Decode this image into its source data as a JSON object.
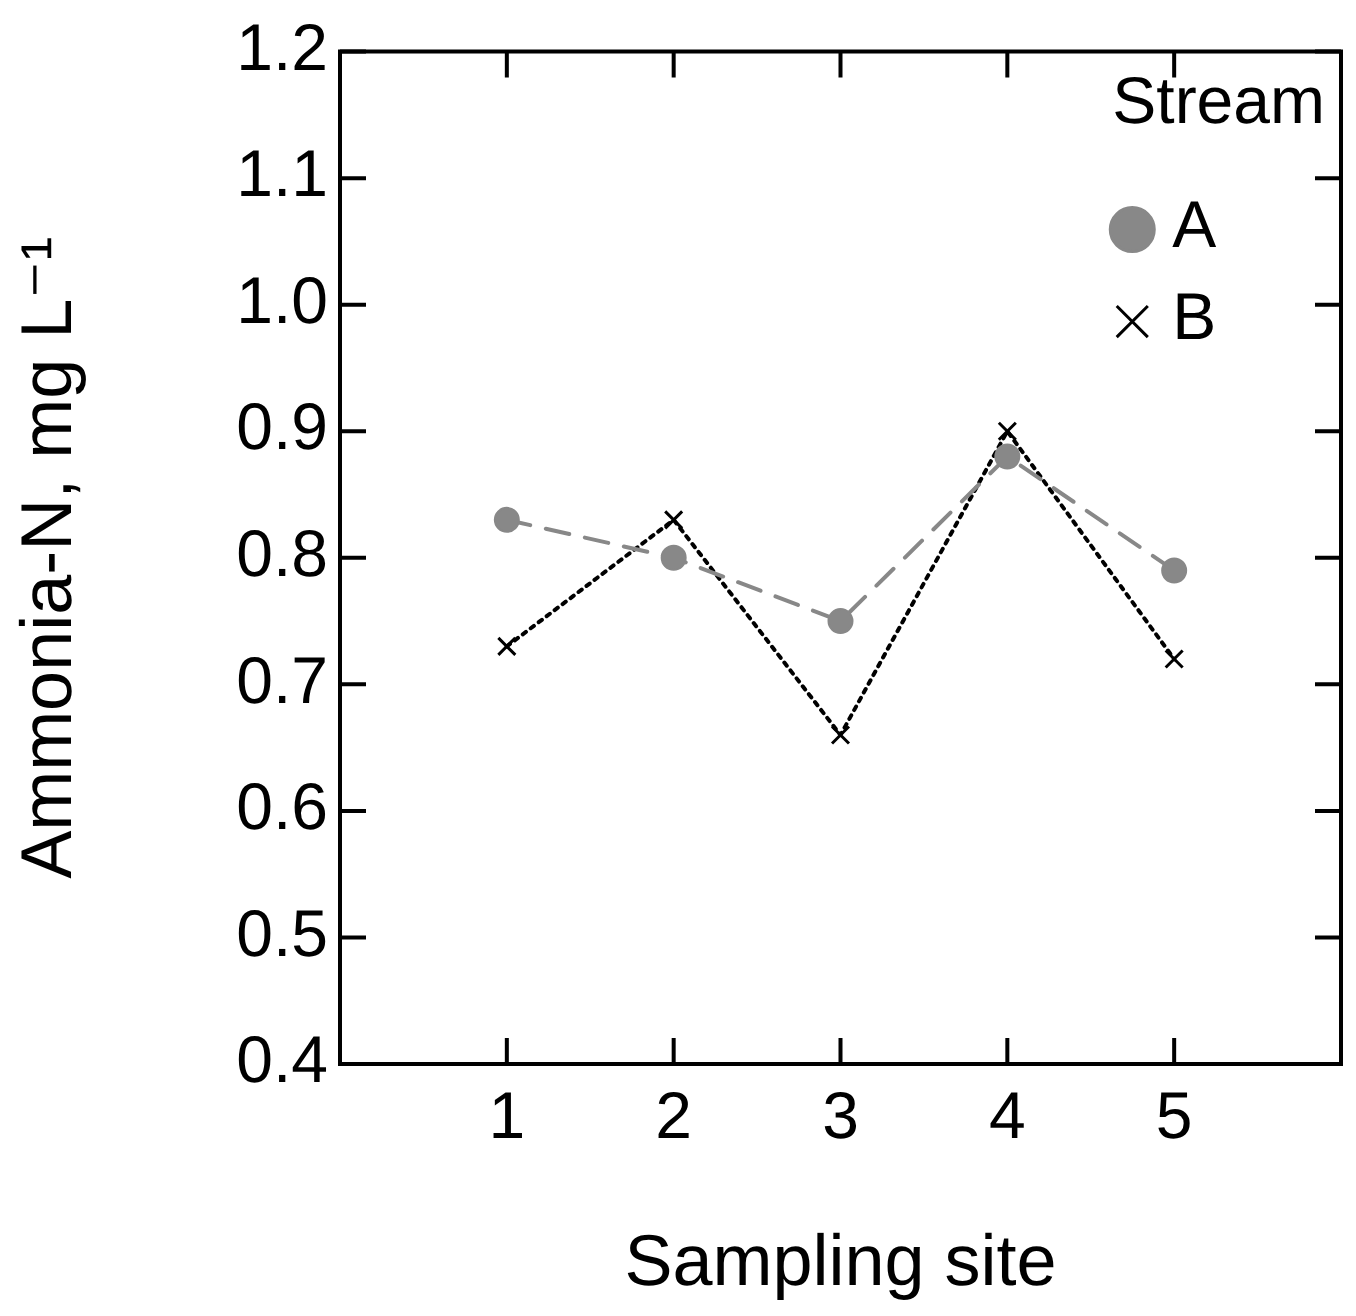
{
  "chart_data": {
    "type": "line",
    "xlabel": "Sampling site",
    "ylabel": "Ammonia-N, mg L⁻¹",
    "legend_title": "Stream",
    "legend": "top right",
    "grid": false,
    "x": [
      1,
      2,
      3,
      4,
      5
    ],
    "xlim": [
      0,
      6
    ],
    "xticks": [
      1,
      2,
      3,
      4,
      5
    ],
    "ylim": [
      0.4,
      1.2
    ],
    "yticks": [
      0.4,
      0.5,
      0.6,
      0.7,
      0.8,
      0.9,
      {
        "value": 1,
        "label": "1.0"
      },
      1.1,
      1.2
    ],
    "series": [
      {
        "name": "A",
        "color": "#888888",
        "marker": "circle",
        "line_style": "dashed",
        "values": [
          0.83,
          0.8,
          0.75,
          0.88,
          0.79
        ]
      },
      {
        "name": "B",
        "color": "#000000",
        "marker": "cross",
        "line_style": "dotted",
        "values": [
          0.73,
          0.83,
          0.66,
          0.9,
          0.72
        ]
      }
    ]
  }
}
